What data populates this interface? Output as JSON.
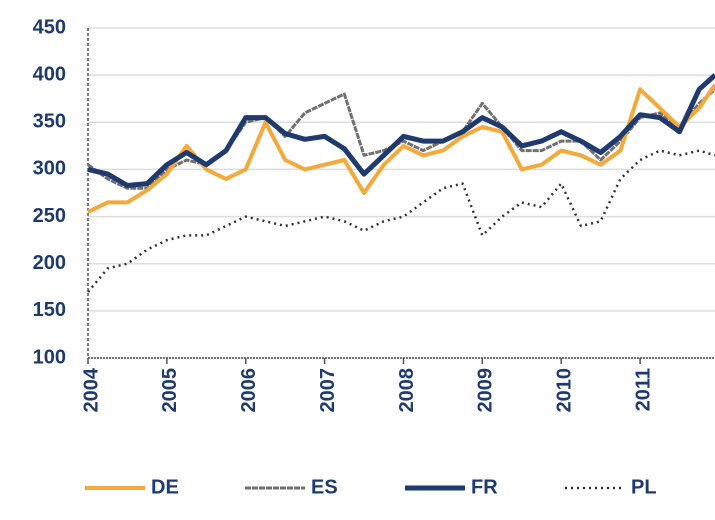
{
  "chart_data": {
    "type": "line",
    "x": [
      2004,
      2004.25,
      2004.5,
      2004.75,
      2005,
      2005.25,
      2005.5,
      2005.75,
      2006,
      2006.25,
      2006.5,
      2006.75,
      2007,
      2007.25,
      2007.5,
      2007.75,
      2008,
      2008.25,
      2008.5,
      2008.75,
      2009,
      2009.25,
      2009.5,
      2009.75,
      2010,
      2010.25,
      2010.5,
      2010.75,
      2011,
      2011.25,
      2011.5,
      2011.75,
      2011.95
    ],
    "series": [
      {
        "name": "DE",
        "color": "#f4a93a",
        "values": [
          255,
          265,
          265,
          278,
          295,
          325,
          300,
          290,
          300,
          350,
          310,
          300,
          305,
          310,
          275,
          305,
          325,
          315,
          320,
          335,
          345,
          340,
          300,
          305,
          320,
          315,
          305,
          320,
          385,
          365,
          345,
          365,
          390
        ]
      },
      {
        "name": "ES",
        "color": "#707070",
        "values": [
          305,
          290,
          280,
          280,
          300,
          310,
          305,
          320,
          350,
          355,
          335,
          360,
          370,
          380,
          315,
          320,
          330,
          320,
          330,
          340,
          370,
          345,
          320,
          320,
          330,
          330,
          310,
          330,
          355,
          360,
          345,
          370,
          385
        ]
      },
      {
        "name": "FR",
        "color": "#1f3a6e",
        "values": [
          300,
          295,
          283,
          285,
          305,
          318,
          305,
          320,
          355,
          355,
          338,
          332,
          335,
          322,
          295,
          315,
          335,
          330,
          330,
          340,
          355,
          345,
          325,
          330,
          340,
          330,
          318,
          335,
          358,
          355,
          340,
          385,
          400
        ]
      },
      {
        "name": "PL",
        "color": "#333333",
        "values": [
          170,
          195,
          200,
          215,
          225,
          230,
          230,
          240,
          250,
          245,
          240,
          245,
          250,
          245,
          235,
          245,
          250,
          265,
          280,
          285,
          230,
          250,
          265,
          260,
          285,
          240,
          245,
          290,
          310,
          320,
          315,
          320,
          315
        ]
      }
    ],
    "xlim": [
      2004,
      2011.95
    ],
    "xticks": [
      2004,
      2005,
      2006,
      2007,
      2008,
      2009,
      2010,
      2011
    ],
    "ylim": [
      100,
      450
    ],
    "yticks": [
      100,
      150,
      200,
      250,
      300,
      350,
      400,
      450
    ],
    "grid": true
  }
}
